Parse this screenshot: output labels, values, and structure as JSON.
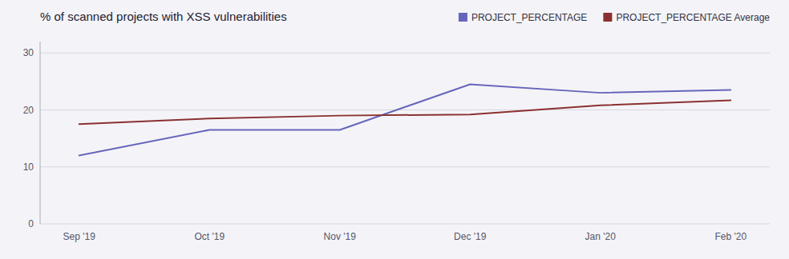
{
  "chart_data": {
    "type": "line",
    "title": "% of scanned projects with XSS vulnerabilities",
    "categories": [
      "Sep '19",
      "Oct '19",
      "Nov '19",
      "Dec '19",
      "Jan '20",
      "Feb '20"
    ],
    "series": [
      {
        "name": "PROJECT_PERCENTAGE",
        "color": "#6666bb",
        "values": [
          12.0,
          16.5,
          16.5,
          24.5,
          23.0,
          23.5
        ]
      },
      {
        "name": "PROJECT_PERCENTAGE Average",
        "color": "#8b3030",
        "values": [
          17.5,
          18.5,
          19.0,
          19.2,
          20.8,
          21.7
        ]
      }
    ],
    "ylim": [
      0,
      32
    ],
    "yticks": [
      0,
      10,
      20,
      30
    ],
    "grid": true,
    "legend": "upper right"
  }
}
